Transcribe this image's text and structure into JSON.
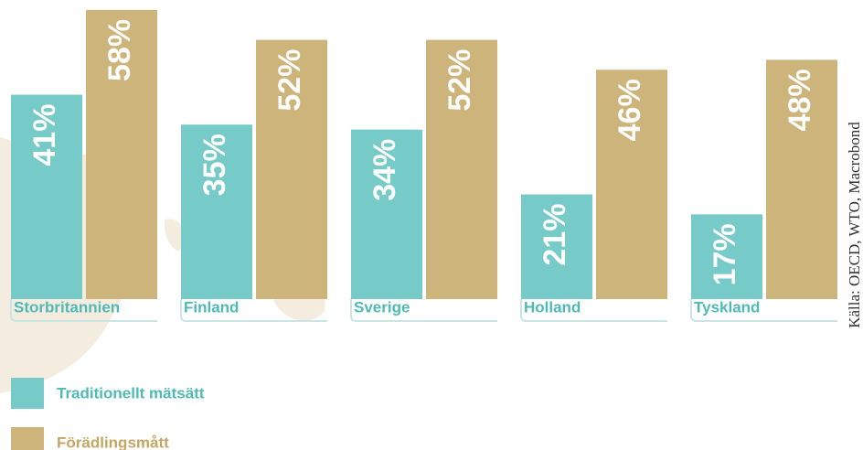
{
  "chart_data": {
    "type": "bar",
    "categories": [
      "Storbritannien",
      "Finland",
      "Sverige",
      "Holland",
      "Tyskland"
    ],
    "series": [
      {
        "name": "Traditionellt mätsätt",
        "color": "#76cbc8",
        "values": [
          41,
          35,
          34,
          21,
          17
        ],
        "value_labels": [
          "41%",
          "35%",
          "34%",
          "21%",
          "17%"
        ]
      },
      {
        "name": "Förädlingsmått",
        "color": "#cdb47a",
        "values": [
          58,
          52,
          52,
          46,
          48
        ],
        "value_labels": [
          "58%",
          "52%",
          "52%",
          "46%",
          "48%"
        ]
      }
    ],
    "source": "Källa: OECD, WTO, Macrobond"
  }
}
